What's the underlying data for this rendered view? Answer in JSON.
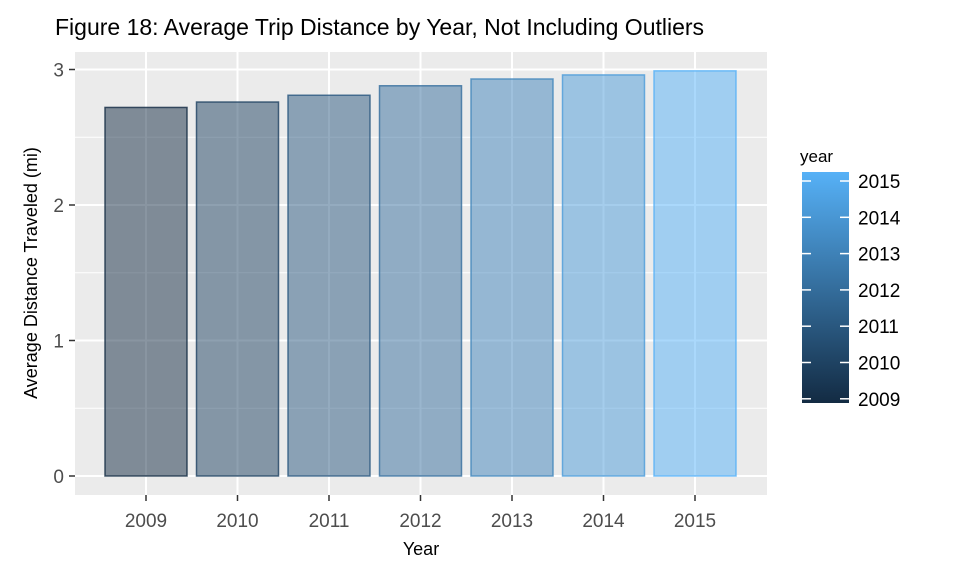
{
  "chart_data": {
    "type": "bar",
    "title": "Figure 18: Average Trip Distance by Year, Not Including Outliers",
    "xlabel": "Year",
    "ylabel": "Average Distance Traveled (mi)",
    "categories": [
      "2009",
      "2010",
      "2011",
      "2012",
      "2013",
      "2014",
      "2015"
    ],
    "values": [
      2.72,
      2.76,
      2.81,
      2.88,
      2.93,
      2.96,
      2.99
    ],
    "ylim": [
      0,
      3.14
    ],
    "yticks": [
      0,
      1,
      2,
      3
    ],
    "grid": true,
    "panel_background": "#ebebeb",
    "bar_alpha": 0.5,
    "legend": {
      "title": "year",
      "placement": "right",
      "labels": [
        "2015",
        "2014",
        "2013",
        "2012",
        "2011",
        "2010",
        "2009"
      ],
      "color_low": "#132b43",
      "color_high": "#56b1f7"
    }
  }
}
